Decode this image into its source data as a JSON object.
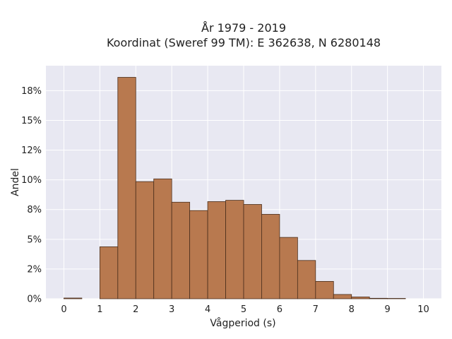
{
  "chart_data": {
    "type": "bar",
    "title_line1": "År 1979 - 2019",
    "title_line2": "Koordinat (Sweref 99 TM): E 362638, N 6280148",
    "xlabel": "Vågperiod (s)",
    "ylabel": "Andel",
    "xlim": [
      -0.5,
      10.5
    ],
    "ylim": [
      0,
      0.196
    ],
    "x_ticks": [
      0,
      1,
      2,
      3,
      4,
      5,
      6,
      7,
      8,
      9,
      10
    ],
    "x_tick_labels": [
      "0",
      "1",
      "2",
      "3",
      "4",
      "5",
      "6",
      "7",
      "8",
      "9",
      "10"
    ],
    "y_ticks": [
      0,
      0.025,
      0.05,
      0.075,
      0.1,
      0.125,
      0.15,
      0.175
    ],
    "y_tick_labels": [
      "0%",
      "2%",
      "5%",
      "8%",
      "10%",
      "12%",
      "15%",
      "18%"
    ],
    "bin_width": 0.5,
    "bins": [
      {
        "x0": 0.0,
        "value": 0.0006
      },
      {
        "x0": 0.5,
        "value": 0.0
      },
      {
        "x0": 1.0,
        "value": 0.0437
      },
      {
        "x0": 1.5,
        "value": 0.1862
      },
      {
        "x0": 2.0,
        "value": 0.0985
      },
      {
        "x0": 2.5,
        "value": 0.1008
      },
      {
        "x0": 3.0,
        "value": 0.0812
      },
      {
        "x0": 3.5,
        "value": 0.0742
      },
      {
        "x0": 4.0,
        "value": 0.0817
      },
      {
        "x0": 4.5,
        "value": 0.0828
      },
      {
        "x0": 5.0,
        "value": 0.0793
      },
      {
        "x0": 5.5,
        "value": 0.071
      },
      {
        "x0": 6.0,
        "value": 0.0516
      },
      {
        "x0": 6.5,
        "value": 0.0322
      },
      {
        "x0": 7.0,
        "value": 0.0146
      },
      {
        "x0": 7.5,
        "value": 0.0036
      },
      {
        "x0": 8.0,
        "value": 0.0015
      },
      {
        "x0": 8.5,
        "value": 0.0004
      },
      {
        "x0": 9.0,
        "value": 0.0003
      }
    ],
    "grid": true,
    "colors": {
      "bar_fill": "#b8794f",
      "bar_edge": "#4a2e1c",
      "plot_bg": "#e8e8f2",
      "grid": "#ffffff"
    }
  }
}
